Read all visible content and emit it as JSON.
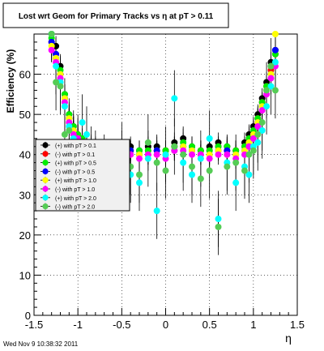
{
  "chart_data": {
    "type": "scatter",
    "title": "Lost wrt Geom for Primary Tracks vs   η at pT > 0.11",
    "xlabel": "η",
    "ylabel": "Efficiency (%)",
    "xlim": [
      -1.5,
      1.5
    ],
    "ylim": [
      0,
      70
    ],
    "x_ticks": [
      -1.5,
      -1,
      -0.5,
      0,
      0.5,
      1,
      1.5
    ],
    "x_tick_labels": [
      "-1.5",
      "-1",
      "-0.5",
      "0",
      "0.5",
      "1",
      "1.5"
    ],
    "y_ticks": [
      0,
      10,
      20,
      30,
      40,
      50,
      60
    ],
    "y_tick_labels": [
      "0",
      "10",
      "20",
      "30",
      "40",
      "50",
      "60"
    ],
    "grid": true,
    "legend_position": "left-middle",
    "timestamp": "Wed Nov  9 10:38:32 2011",
    "x": [
      -1.3,
      -1.25,
      -1.2,
      -1.15,
      -1.1,
      -1.05,
      -1.0,
      -0.95,
      -0.9,
      -0.85,
      -0.8,
      -0.7,
      -0.6,
      -0.5,
      -0.4,
      -0.3,
      -0.2,
      -0.1,
      0.0,
      0.1,
      0.2,
      0.3,
      0.4,
      0.5,
      0.6,
      0.7,
      0.8,
      0.9,
      0.95,
      1.0,
      1.05,
      1.1,
      1.15,
      1.2,
      1.25
    ],
    "series": [
      {
        "name": "(+) with pT > 0.1",
        "color": "#000000",
        "values": [
          70,
          67,
          62,
          55,
          50,
          47,
          45,
          44,
          43,
          42,
          42,
          41,
          41,
          41,
          42,
          41,
          42,
          42,
          41,
          43,
          44,
          42,
          41,
          42,
          43,
          42,
          41,
          43,
          45,
          47,
          50,
          54,
          58,
          63,
          66
        ]
      },
      {
        "name": "(-) with pT > 0.1",
        "color": "#ff0000",
        "values": [
          68,
          64,
          60,
          54,
          49,
          46,
          45,
          44,
          43,
          42,
          41,
          41,
          40,
          41,
          41,
          40,
          41,
          41,
          41,
          42,
          42,
          41,
          41,
          41,
          42,
          41,
          41,
          42,
          44,
          46,
          49,
          53,
          57,
          61,
          65
        ]
      },
      {
        "name": "(+) with pT > 0.5",
        "color": "#00ee00",
        "values": [
          69,
          65,
          61,
          55,
          50,
          47,
          45,
          44,
          43,
          42,
          41,
          41,
          41,
          41,
          41,
          41,
          41,
          41,
          41,
          42,
          43,
          42,
          41,
          41,
          42,
          42,
          41,
          42,
          44,
          46,
          49,
          53,
          57,
          62,
          65
        ]
      },
      {
        "name": "(-) with pT > 0.5",
        "color": "#0000ff",
        "values": [
          68,
          65,
          60,
          54,
          49,
          46,
          44,
          43,
          42,
          42,
          41,
          40,
          40,
          40,
          41,
          40,
          40,
          41,
          40,
          41,
          42,
          41,
          40,
          40,
          41,
          41,
          40,
          41,
          43,
          45,
          48,
          52,
          56,
          60,
          66
        ]
      },
      {
        "name": "(+) with pT > 1.0",
        "color": "#ffff00",
        "values": [
          67,
          64,
          60,
          54,
          49,
          46,
          44,
          43,
          42,
          41,
          41,
          40,
          40,
          40,
          40,
          40,
          40,
          40,
          40,
          41,
          42,
          41,
          40,
          40,
          41,
          40,
          40,
          41,
          43,
          45,
          48,
          52,
          56,
          60,
          70
        ]
      },
      {
        "name": "(-) with pT > 1.0",
        "color": "#ff00ff",
        "values": [
          66,
          63,
          59,
          53,
          48,
          45,
          44,
          43,
          42,
          41,
          40,
          40,
          39,
          40,
          40,
          39,
          40,
          40,
          39,
          41,
          41,
          40,
          40,
          39,
          40,
          40,
          39,
          40,
          42,
          44,
          47,
          51,
          55,
          59,
          62
        ]
      },
      {
        "name": "(+) with pT > 2.0",
        "color": "#00ffff",
        "values": [
          70,
          62,
          58,
          52,
          47,
          44,
          43,
          48,
          45,
          40,
          39,
          38,
          36,
          41,
          35,
          33,
          39,
          26,
          40,
          54,
          38,
          35,
          39,
          44,
          24,
          38,
          33,
          37,
          35,
          42,
          43,
          46,
          52,
          57,
          63
        ]
      },
      {
        "name": "(-) with pT > 2.0",
        "color": "#55cc55",
        "values": [
          70,
          58,
          57,
          45,
          46,
          43,
          42,
          38,
          36,
          38,
          37,
          36,
          33,
          39,
          37,
          35,
          43,
          38,
          36,
          42,
          40,
          37,
          34,
          36,
          22,
          37,
          38,
          36,
          40,
          41,
          45,
          48,
          56,
          62,
          56
        ]
      }
    ]
  }
}
